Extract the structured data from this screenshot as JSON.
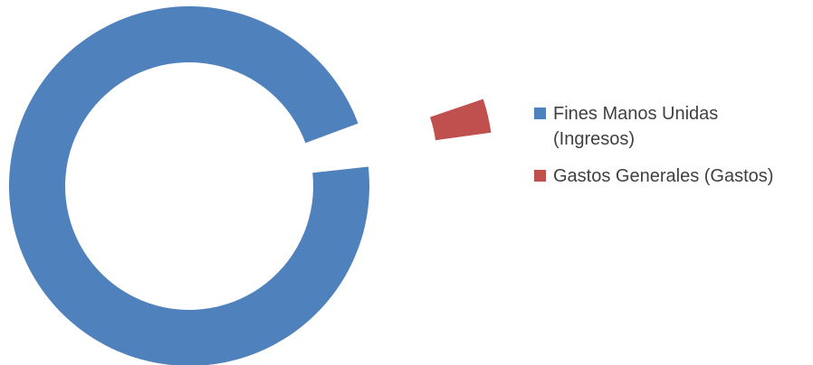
{
  "chart_data": {
    "type": "pie",
    "style": "donut",
    "exploded": true,
    "title": "",
    "series": [
      {
        "values": [
          96.5,
          3.5
        ]
      }
    ],
    "categories": [
      "Fines Manos Unidas (Ingresos)",
      "Gastos Generales (Gastos)"
    ],
    "colors": [
      "#4F81BD",
      "#C0504D"
    ],
    "legend_position": "right"
  },
  "legend": {
    "items": [
      {
        "label": "Fines Manos Unidas (Ingresos)",
        "color": "#4F81BD"
      },
      {
        "label": "Gastos Generales (Gastos)",
        "color": "#C0504D"
      }
    ]
  }
}
